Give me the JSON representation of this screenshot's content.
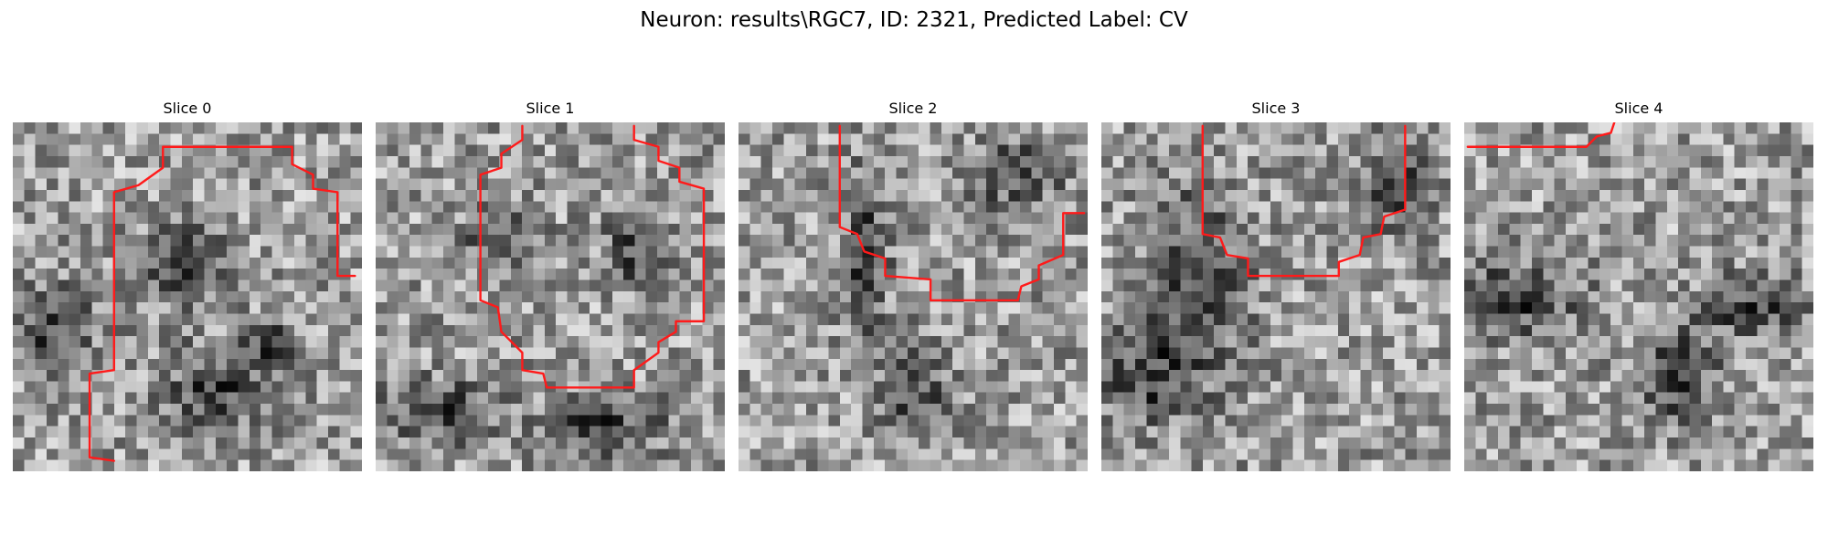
{
  "figure": {
    "title": "Neuron: results\\RGC7, ID: 2321, Predicted Label: CV",
    "contour_color": "#ff1a1a",
    "colormap": "gray",
    "grid_cells": 31
  },
  "slices": [
    {
      "title": "Slice 0",
      "dark_regions": [
        [
          0.05,
          0.52,
          0.12,
          0.14
        ],
        [
          0.42,
          0.35,
          0.13,
          0.12
        ],
        [
          0.5,
          0.7,
          0.16,
          0.13
        ],
        [
          0.7,
          0.6,
          0.08,
          0.08
        ]
      ],
      "contour": [
        [
          0.29,
          0.97
        ],
        [
          0.22,
          0.96
        ],
        [
          0.22,
          0.72
        ],
        [
          0.29,
          0.71
        ],
        [
          0.29,
          0.2
        ],
        [
          0.36,
          0.18
        ],
        [
          0.43,
          0.13
        ],
        [
          0.43,
          0.07
        ],
        [
          0.8,
          0.07
        ],
        [
          0.8,
          0.12
        ],
        [
          0.86,
          0.15
        ],
        [
          0.86,
          0.19
        ],
        [
          0.93,
          0.2
        ],
        [
          0.93,
          0.44
        ],
        [
          0.98,
          0.44
        ]
      ]
    },
    {
      "title": "Slice 1",
      "dark_regions": [
        [
          0.1,
          0.78,
          0.18,
          0.1
        ],
        [
          0.55,
          0.82,
          0.2,
          0.1
        ],
        [
          0.3,
          0.3,
          0.12,
          0.1
        ],
        [
          0.7,
          0.3,
          0.1,
          0.12
        ]
      ],
      "contour": [
        [
          0.42,
          0.01
        ],
        [
          0.42,
          0.05
        ],
        [
          0.36,
          0.09
        ],
        [
          0.36,
          0.13
        ],
        [
          0.3,
          0.15
        ],
        [
          0.3,
          0.51
        ],
        [
          0.35,
          0.53
        ],
        [
          0.36,
          0.6
        ],
        [
          0.42,
          0.66
        ],
        [
          0.42,
          0.71
        ],
        [
          0.48,
          0.72
        ],
        [
          0.49,
          0.76
        ],
        [
          0.74,
          0.76
        ],
        [
          0.74,
          0.71
        ],
        [
          0.81,
          0.66
        ],
        [
          0.81,
          0.63
        ],
        [
          0.86,
          0.6
        ],
        [
          0.86,
          0.57
        ],
        [
          0.94,
          0.57
        ],
        [
          0.94,
          0.19
        ],
        [
          0.87,
          0.17
        ],
        [
          0.87,
          0.13
        ],
        [
          0.81,
          0.11
        ],
        [
          0.81,
          0.07
        ],
        [
          0.74,
          0.05
        ],
        [
          0.74,
          0.01
        ]
      ]
    },
    {
      "title": "Slice 2",
      "dark_regions": [
        [
          0.72,
          0.1,
          0.15,
          0.1
        ],
        [
          0.33,
          0.25,
          0.07,
          0.25
        ],
        [
          0.45,
          0.7,
          0.1,
          0.15
        ]
      ],
      "contour": [
        [
          0.29,
          0.01
        ],
        [
          0.29,
          0.3
        ],
        [
          0.34,
          0.32
        ],
        [
          0.36,
          0.37
        ],
        [
          0.42,
          0.39
        ],
        [
          0.42,
          0.44
        ],
        [
          0.55,
          0.45
        ],
        [
          0.55,
          0.51
        ],
        [
          0.8,
          0.51
        ],
        [
          0.81,
          0.47
        ],
        [
          0.86,
          0.45
        ],
        [
          0.86,
          0.41
        ],
        [
          0.93,
          0.38
        ],
        [
          0.93,
          0.26
        ],
        [
          0.99,
          0.26
        ]
      ]
    },
    {
      "title": "Slice 3",
      "dark_regions": [
        [
          0.05,
          0.65,
          0.15,
          0.15
        ],
        [
          0.2,
          0.3,
          0.15,
          0.3
        ],
        [
          0.8,
          0.1,
          0.1,
          0.15
        ]
      ],
      "contour": [
        [
          0.29,
          0.01
        ],
        [
          0.29,
          0.32
        ],
        [
          0.34,
          0.33
        ],
        [
          0.36,
          0.38
        ],
        [
          0.42,
          0.39
        ],
        [
          0.42,
          0.44
        ],
        [
          0.68,
          0.44
        ],
        [
          0.68,
          0.4
        ],
        [
          0.74,
          0.38
        ],
        [
          0.75,
          0.33
        ],
        [
          0.8,
          0.32
        ],
        [
          0.81,
          0.27
        ],
        [
          0.87,
          0.25
        ],
        [
          0.87,
          0.01
        ]
      ]
    },
    {
      "title": "Slice 4",
      "dark_regions": [
        [
          0.05,
          0.45,
          0.2,
          0.12
        ],
        [
          0.55,
          0.65,
          0.12,
          0.15
        ],
        [
          0.75,
          0.48,
          0.15,
          0.1
        ]
      ],
      "contour": [
        [
          0.01,
          0.07
        ],
        [
          0.35,
          0.07
        ],
        [
          0.38,
          0.04
        ],
        [
          0.42,
          0.03
        ],
        [
          0.43,
          0.0
        ]
      ]
    }
  ]
}
